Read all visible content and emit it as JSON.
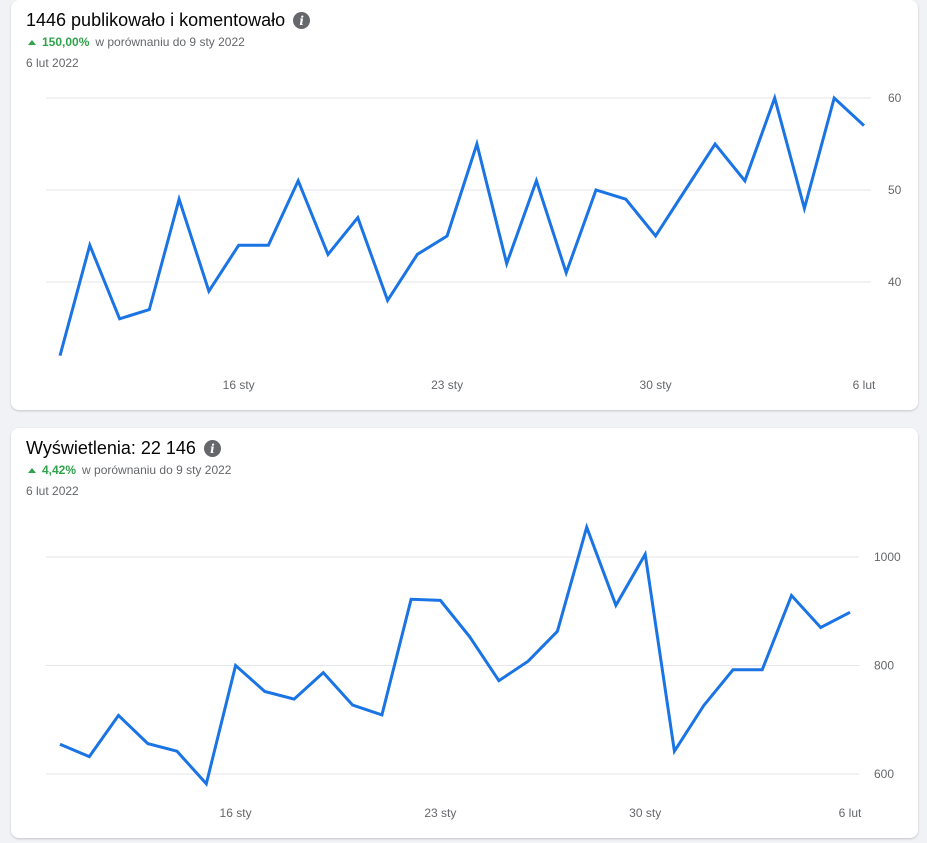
{
  "cards": [
    {
      "title": "1446 publikowało i komentowało",
      "change_pct": "150,00%",
      "change_text": "w porównaniu do 9 sty 2022",
      "date": "6 lut 2022"
    },
    {
      "title": "Wyświetlenia: 22 146",
      "change_pct": "4,42%",
      "change_text": "w porównaniu do 9 sty 2022",
      "date": "6 lut 2022"
    }
  ],
  "colors": {
    "line": "#1b74e4",
    "positive": "#31a24c"
  },
  "chart_data": [
    {
      "type": "line",
      "x_ticks": [
        "16 sty",
        "23 sty",
        "30 sty",
        "6 lut"
      ],
      "y_ticks": [
        40,
        50,
        60
      ],
      "ylim": [
        30,
        60
      ],
      "grid": true,
      "values": [
        32,
        44,
        36,
        37,
        49,
        39,
        44,
        44,
        51,
        43,
        47,
        38,
        43,
        45,
        55,
        42,
        51,
        41,
        50,
        49,
        45,
        50,
        55,
        51,
        60,
        48,
        60,
        57
      ]
    },
    {
      "type": "line",
      "x_ticks": [
        "16 sty",
        "23 sty",
        "30 sty",
        "6 lut"
      ],
      "y_ticks": [
        600,
        800,
        1000
      ],
      "ylim": [
        580,
        1060
      ],
      "grid": true,
      "values": [
        655,
        632,
        708,
        656,
        642,
        582,
        800,
        752,
        738,
        787,
        727,
        709,
        922,
        920,
        853,
        772,
        808,
        863,
        1055,
        911,
        1005,
        642,
        726,
        792,
        792,
        929,
        870,
        898
      ]
    }
  ]
}
